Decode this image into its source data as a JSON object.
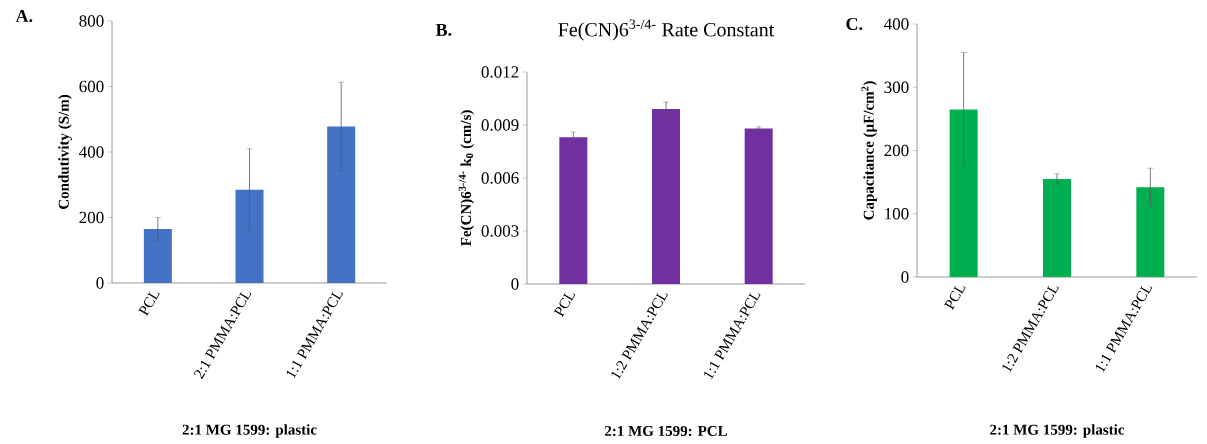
{
  "chart_data": [
    {
      "type": "bar",
      "categories": [
        "PCL",
        "2:1 PMMA:PCL",
        "1:1 PMMA:PCL"
      ],
      "values": [
        165,
        285,
        478
      ],
      "errors": [
        35,
        125,
        135
      ],
      "color": "#4472c4",
      "ylabel": "Condutivity (S/m)",
      "xlabel": "2:1 MG 1599: plastic",
      "ylim": [
        0,
        800
      ],
      "yticks": [
        0,
        200,
        400,
        600,
        800
      ],
      "annotations": [
        "A."
      ]
    },
    {
      "type": "bar",
      "title": "Fe(CN)6$^{3-/4-}$ Rate Constant",
      "categories": [
        "PCL",
        "1:2 PMMA:PCL",
        "1:1 PMMA:PCL"
      ],
      "values": [
        0.0083,
        0.0099,
        0.0088
      ],
      "errors": [
        0.0003,
        0.0004,
        0.0001
      ],
      "color": "#7030a0",
      "ylabel": "Fe(CN)6$^{3-/4-}$ k$_{0}$ (cm/s)",
      "xlabel": "2:1 MG 1599: PCL",
      "ylim": [
        0,
        0.012
      ],
      "yticks": [
        0,
        0.003,
        0.006,
        0.009,
        0.012
      ],
      "annotations": [
        "B."
      ]
    },
    {
      "type": "bar",
      "categories": [
        "PCL",
        "1:2 PMMA:PCL",
        "1:1 PMMA:PCL"
      ],
      "values": [
        265,
        155,
        142
      ],
      "errors": [
        90,
        8,
        30
      ],
      "color": "#00b050",
      "ylabel": "Capacitance (µF/cm$^{2}$)",
      "xlabel": "2:1 MG 1599: plastic",
      "ylim": [
        0,
        400
      ],
      "yticks": [
        0,
        100,
        200,
        300,
        400
      ],
      "annotations": [
        "C."
      ]
    }
  ]
}
